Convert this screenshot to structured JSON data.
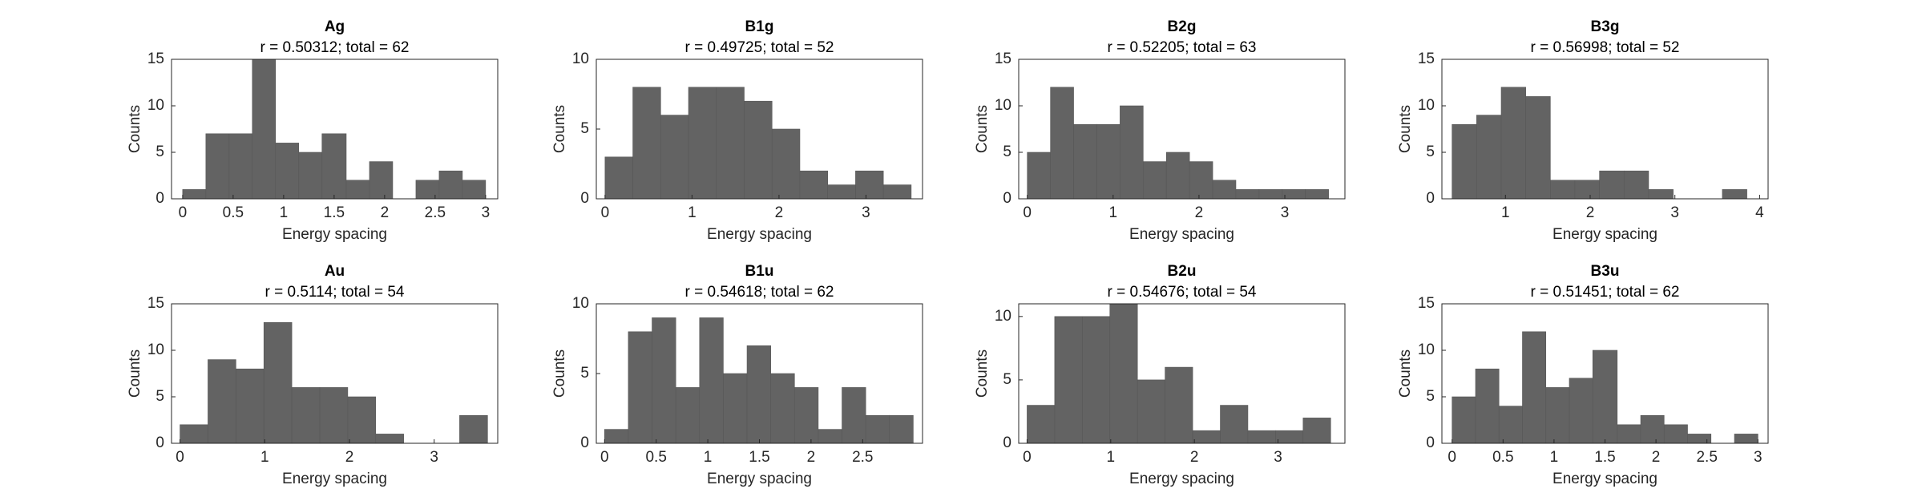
{
  "chart_data": [
    {
      "type": "histogram",
      "title": "Ag",
      "subtitle": "r = 0.50312; total = 62",
      "xlabel": "Energy spacing",
      "ylabel": "Counts",
      "color": "#636363",
      "bins": [
        0,
        0.23,
        0.46,
        0.69,
        0.92,
        1.15,
        1.38,
        1.62,
        1.85,
        2.08,
        2.31,
        2.54,
        2.77,
        3.0
      ],
      "counts": [
        1,
        7,
        7,
        15,
        6,
        5,
        7,
        2,
        4,
        0,
        2,
        3,
        2
      ],
      "xlim": [
        -0.11,
        3.12
      ],
      "ylim": [
        0,
        15
      ],
      "xticks": [
        0,
        0.5,
        1,
        1.5,
        2,
        2.5,
        3
      ],
      "yticks": [
        0,
        5,
        10,
        15
      ]
    },
    {
      "type": "histogram",
      "title": "B1g",
      "subtitle": "r = 0.49725; total = 52",
      "xlabel": "Energy spacing",
      "ylabel": "Counts",
      "color": "#636363",
      "bins": [
        0,
        0.32,
        0.64,
        0.96,
        1.28,
        1.6,
        1.92,
        2.24,
        2.56,
        2.88,
        3.2,
        3.52
      ],
      "counts": [
        3,
        8,
        6,
        8,
        8,
        7,
        5,
        2,
        1,
        2,
        1
      ],
      "xlim": [
        -0.1,
        3.65
      ],
      "ylim": [
        0,
        10
      ],
      "xticks": [
        0,
        1,
        2,
        3
      ],
      "yticks": [
        0,
        5,
        10
      ]
    },
    {
      "type": "histogram",
      "title": "B2g",
      "subtitle": "r = 0.52205; total = 63",
      "xlabel": "Energy spacing",
      "ylabel": "Counts",
      "color": "#636363",
      "bins": [
        0,
        0.27,
        0.54,
        0.81,
        1.08,
        1.35,
        1.62,
        1.89,
        2.16,
        2.43,
        2.7,
        2.97,
        3.24,
        3.51
      ],
      "counts": [
        5,
        12,
        8,
        8,
        10,
        4,
        5,
        4,
        2,
        1,
        1,
        1,
        1
      ],
      "xlim": [
        -0.1,
        3.7
      ],
      "ylim": [
        0,
        15
      ],
      "xticks": [
        0,
        1,
        2,
        3
      ],
      "yticks": [
        0,
        5,
        10,
        15
      ]
    },
    {
      "type": "histogram",
      "title": "B3g",
      "subtitle": "r = 0.56998; total = 52",
      "xlabel": "Energy spacing",
      "ylabel": "Counts",
      "color": "#636363",
      "bins": [
        0.37,
        0.66,
        0.95,
        1.24,
        1.53,
        1.82,
        2.11,
        2.4,
        2.69,
        2.98,
        3.27,
        3.56,
        3.85
      ],
      "counts": [
        8,
        9,
        12,
        11,
        2,
        2,
        3,
        3,
        1,
        0,
        0,
        1
      ],
      "xlim": [
        0.25,
        4.1
      ],
      "ylim": [
        0,
        15
      ],
      "xticks": [
        1,
        2,
        3,
        4
      ],
      "yticks": [
        0,
        5,
        10,
        15
      ]
    },
    {
      "type": "histogram",
      "title": "Au",
      "subtitle": "r = 0.5114; total = 54",
      "xlabel": "Energy spacing",
      "ylabel": "Counts",
      "color": "#636363",
      "bins": [
        0,
        0.33,
        0.66,
        0.99,
        1.32,
        1.65,
        1.98,
        2.31,
        2.64,
        2.97,
        3.3,
        3.63
      ],
      "counts": [
        2,
        9,
        8,
        13,
        6,
        6,
        5,
        1,
        0,
        0,
        3
      ],
      "xlim": [
        -0.1,
        3.75
      ],
      "ylim": [
        0,
        15
      ],
      "xticks": [
        0,
        1,
        2,
        3
      ],
      "yticks": [
        0,
        5,
        10,
        15
      ]
    },
    {
      "type": "histogram",
      "title": "B1u",
      "subtitle": "r = 0.54618; total = 62",
      "xlabel": "Energy spacing",
      "ylabel": "Counts",
      "color": "#636363",
      "bins": [
        0,
        0.23,
        0.46,
        0.69,
        0.92,
        1.15,
        1.38,
        1.61,
        1.84,
        2.07,
        2.3,
        2.53,
        2.76,
        2.99
      ],
      "counts": [
        1,
        8,
        9,
        4,
        9,
        5,
        7,
        5,
        4,
        1,
        4,
        2,
        2
      ],
      "xlim": [
        -0.08,
        3.08
      ],
      "ylim": [
        0,
        10
      ],
      "xticks": [
        0,
        0.5,
        1,
        1.5,
        2,
        2.5
      ],
      "yticks": [
        0,
        5,
        10
      ]
    },
    {
      "type": "histogram",
      "title": "B2u",
      "subtitle": "r = 0.54676; total = 54",
      "xlabel": "Energy spacing",
      "ylabel": "Counts",
      "color": "#636363",
      "bins": [
        0,
        0.33,
        0.66,
        0.99,
        1.32,
        1.65,
        1.98,
        2.31,
        2.64,
        2.97,
        3.3,
        3.63
      ],
      "counts": [
        3,
        10,
        10,
        11,
        5,
        6,
        1,
        3,
        1,
        1,
        2
      ],
      "xlim": [
        -0.1,
        3.8
      ],
      "ylim": [
        0,
        11
      ],
      "xticks": [
        0,
        1,
        2,
        3
      ],
      "yticks": [
        0,
        5,
        10
      ]
    },
    {
      "type": "histogram",
      "title": "B3u",
      "subtitle": "r = 0.51451; total = 62",
      "xlabel": "Energy spacing",
      "ylabel": "Counts",
      "color": "#636363",
      "bins": [
        0,
        0.23,
        0.46,
        0.69,
        0.92,
        1.15,
        1.38,
        1.62,
        1.85,
        2.08,
        2.31,
        2.54,
        2.77,
        3.0
      ],
      "counts": [
        5,
        8,
        4,
        12,
        6,
        7,
        10,
        2,
        3,
        2,
        1,
        0,
        1
      ],
      "xlim": [
        -0.1,
        3.1
      ],
      "ylim": [
        0,
        15
      ],
      "xticks": [
        0,
        0.5,
        1,
        1.5,
        2,
        2.5,
        3
      ],
      "yticks": [
        0,
        5,
        10,
        15
      ]
    }
  ]
}
